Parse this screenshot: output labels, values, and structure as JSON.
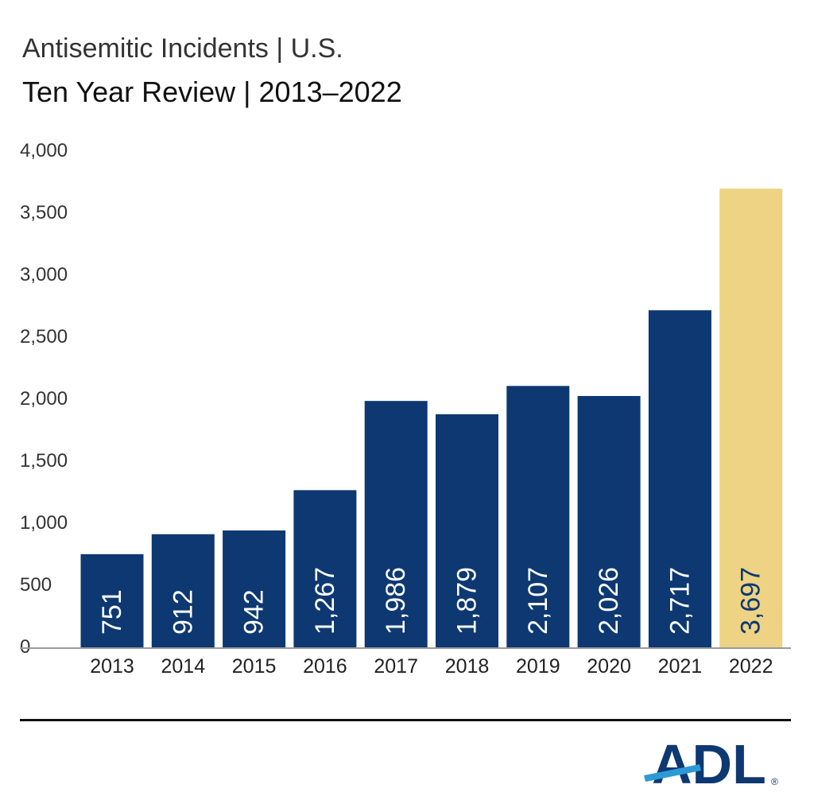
{
  "chart_data": {
    "type": "bar",
    "title": "Antisemitic Incidents | U.S.",
    "subtitle": "Ten Year Review | 2013–2022",
    "categories": [
      "2013",
      "2014",
      "2015",
      "2016",
      "2017",
      "2018",
      "2019",
      "2020",
      "2021",
      "2022"
    ],
    "values": [
      751,
      912,
      942,
      1267,
      1986,
      1879,
      2107,
      2026,
      2717,
      3697
    ],
    "value_labels": [
      "751",
      "912",
      "942",
      "1,267",
      "1,986",
      "1,879",
      "2,107",
      "2,026",
      "2,717",
      "3,697"
    ],
    "ylim": [
      0,
      4000
    ],
    "yticks": [
      0,
      500,
      1000,
      1500,
      2000,
      2500,
      3000,
      3500,
      4000
    ],
    "ytick_labels": [
      "0",
      "500",
      "1,000",
      "1,500",
      "2,000",
      "2,500",
      "3,000",
      "3,500",
      "4,000"
    ],
    "xlabel": "",
    "ylabel": "",
    "grid": false,
    "legend": "none",
    "colors": {
      "default": "#0d3872",
      "highlight": "#edd383"
    },
    "highlight_index": 9,
    "axis_color": "#9a9a9a"
  },
  "branding": {
    "logo_text": "ADL",
    "registered_mark": "®",
    "logo_color": "#0d3872",
    "stripe_color": "#2b9ad6"
  }
}
